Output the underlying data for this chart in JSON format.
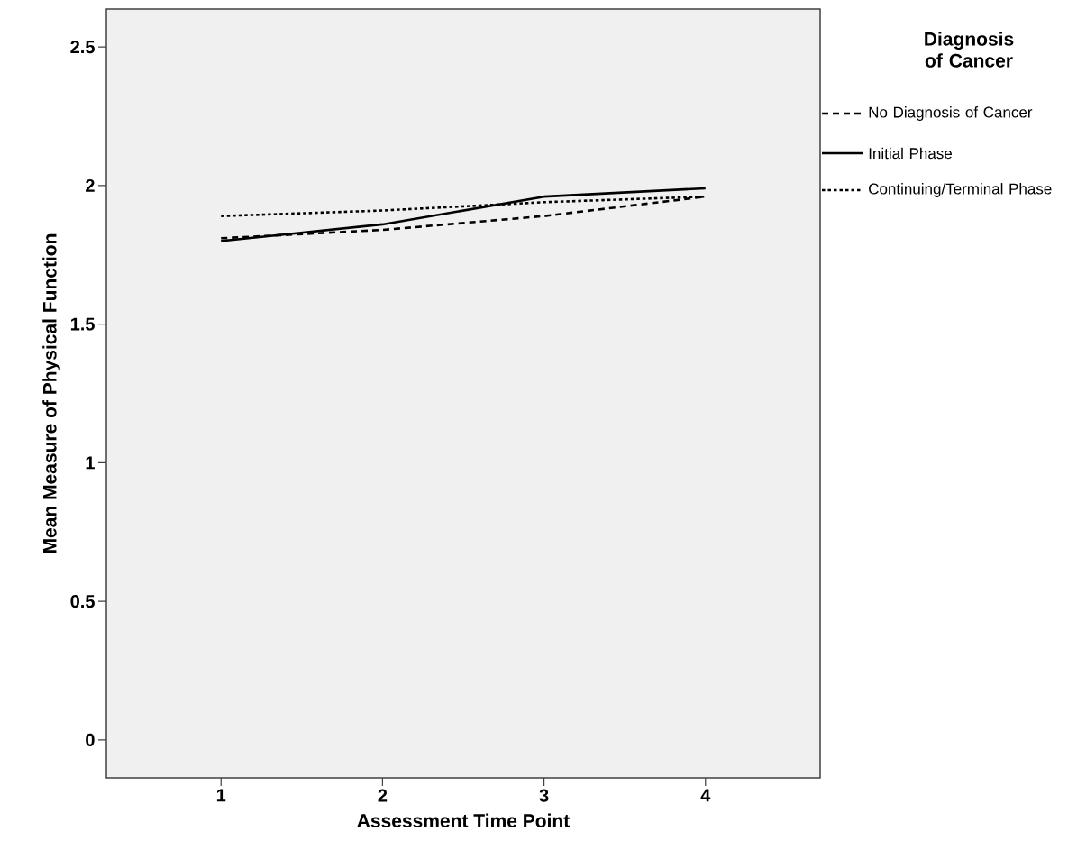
{
  "chart_data": {
    "type": "line",
    "xlabel": "Assessment Time Point",
    "ylabel": "Mean Measure of Physical Function",
    "legend_title": "Diagnosis of Cancer",
    "x": [
      1,
      2,
      3,
      4
    ],
    "xlim": [
      0.29,
      4.71
    ],
    "xticks": [
      1,
      2,
      3,
      4
    ],
    "ylim": [
      -0.137,
      2.637
    ],
    "yticks": [
      0,
      0.5,
      1,
      1.5,
      2,
      2.5
    ],
    "legend": "right",
    "grid": false,
    "marker": "none",
    "series": [
      {
        "name": "No Diagnosis of Cancer",
        "color": "#000000",
        "line_style": "dashed",
        "values": [
          1.81,
          1.84,
          1.89,
          1.96
        ]
      },
      {
        "name": "Initial Phase",
        "color": "#000000",
        "line_style": "solid",
        "values": [
          1.8,
          1.86,
          1.96,
          1.99
        ]
      },
      {
        "name": "Continuing/Terminal Phase",
        "color": "#000000",
        "line_style": "dotted",
        "values": [
          1.89,
          1.91,
          1.94,
          1.96
        ]
      }
    ]
  }
}
